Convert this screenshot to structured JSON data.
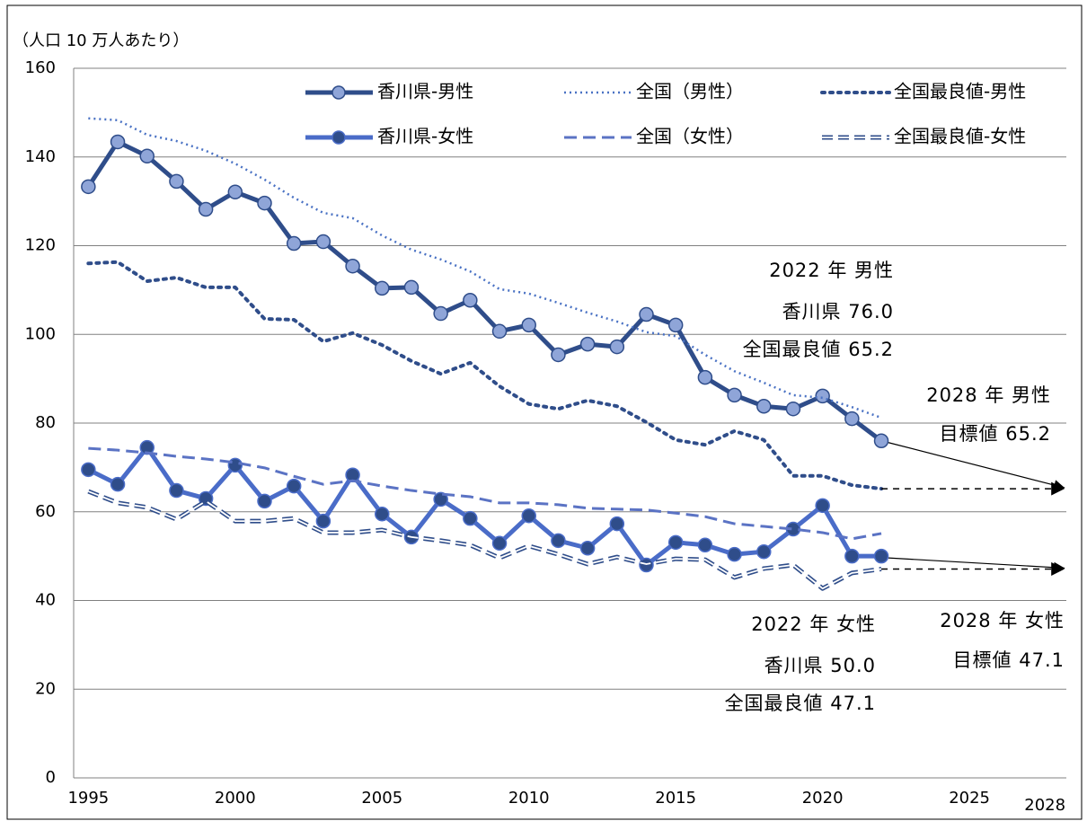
{
  "chart_data": {
    "type": "line",
    "y_axis_label": "（人口 10 万人あたり）",
    "x": [
      1995,
      1996,
      1997,
      1998,
      1999,
      2000,
      2001,
      2002,
      2003,
      2004,
      2005,
      2006,
      2007,
      2008,
      2009,
      2010,
      2011,
      2012,
      2013,
      2014,
      2015,
      2016,
      2017,
      2018,
      2019,
      2020,
      2021,
      2022
    ],
    "xlim": [
      1994.5,
      2028.3
    ],
    "xticks": [
      1995,
      2000,
      2005,
      2010,
      2015,
      2020,
      2025,
      2028
    ],
    "ylim": [
      0,
      160
    ],
    "yticks": [
      0,
      20,
      40,
      60,
      80,
      100,
      120,
      140,
      160
    ],
    "grid": true,
    "series": [
      {
        "name": "香川県-男性",
        "color": "#2f4d8a",
        "line_style": "solid",
        "markers": true,
        "values": [
          133.3,
          143.4,
          140.2,
          134.5,
          128.2,
          132.1,
          129.6,
          120.5,
          120.9,
          115.4,
          110.4,
          110.6,
          104.7,
          107.7,
          100.7,
          102.1,
          95.4,
          97.8,
          97.2,
          104.5,
          102.1,
          90.3,
          86.3,
          83.8,
          83.2,
          86.1,
          81.0,
          76.0
        ]
      },
      {
        "name": "全国（男性）",
        "color": "#4a72c4",
        "line_style": "dotted",
        "markers": false,
        "values": [
          148.7,
          148.3,
          145.0,
          143.6,
          141.4,
          138.5,
          134.9,
          130.8,
          127.4,
          126.2,
          122.3,
          119.1,
          116.9,
          114.2,
          110.2,
          109.2,
          107.1,
          104.9,
          102.9,
          100.5,
          99.6,
          95.4,
          91.7,
          89.1,
          86.3,
          85.7,
          83.6,
          81.2
        ]
      },
      {
        "name": "全国最良値-男性",
        "color": "#2f4d8a",
        "line_style": "dotted-bold",
        "markers": false,
        "values": [
          116.0,
          116.3,
          112.0,
          112.8,
          110.6,
          110.6,
          103.5,
          103.3,
          98.4,
          100.3,
          97.6,
          94.0,
          91.1,
          93.6,
          88.3,
          84.3,
          83.2,
          85.1,
          83.8,
          80.2,
          76.2,
          75.1,
          78.2,
          76.2,
          68.1,
          68.1,
          66.0,
          65.2
        ]
      },
      {
        "name": "香川県-女性",
        "color": "#4a6cc8",
        "line_style": "solid",
        "markers": true,
        "values": [
          69.5,
          66.2,
          74.5,
          64.8,
          63.0,
          70.5,
          62.4,
          65.8,
          57.9,
          68.3,
          59.5,
          54.3,
          62.8,
          58.5,
          52.9,
          59.1,
          53.5,
          51.8,
          57.3,
          48.0,
          53.1,
          52.5,
          50.4,
          51.0,
          56.1,
          61.4,
          50.0,
          50.0
        ]
      },
      {
        "name": "全国（女性）",
        "color": "#5b73c4",
        "line_style": "dashed",
        "markers": false,
        "values": [
          74.3,
          73.9,
          73.3,
          72.5,
          71.9,
          71.1,
          69.9,
          68.0,
          66.2,
          67.0,
          65.8,
          64.8,
          64.0,
          63.4,
          62.0,
          62.0,
          61.6,
          60.8,
          60.6,
          60.4,
          59.7,
          58.9,
          57.3,
          56.7,
          56.1,
          55.3,
          53.9,
          55.1
        ]
      },
      {
        "name": "全国最良値-女性",
        "color": "#2f4d8a",
        "line_style": "double-dashed",
        "markers": false,
        "values": [
          64.6,
          62.0,
          61.0,
          58.3,
          62.4,
          57.9,
          57.9,
          58.5,
          55.3,
          55.3,
          55.9,
          54.3,
          53.5,
          52.5,
          49.6,
          52.3,
          50.4,
          48.2,
          49.8,
          48.2,
          49.4,
          49.2,
          45.2,
          47.2,
          48.0,
          42.7,
          46.2,
          47.1
        ]
      }
    ],
    "targets": {
      "x": 2028,
      "values": [
        65.2,
        47.1
      ]
    },
    "annotations": [
      "2022 年  男性",
      "香川県  76.0",
      "全国最良値  65.2",
      "2028 年  男性",
      "目標値  65.2",
      "2022 年  女性",
      "香川県  50.0",
      "全国最良値  47.1",
      "2028 年  女性",
      "目標値  47.1"
    ]
  }
}
